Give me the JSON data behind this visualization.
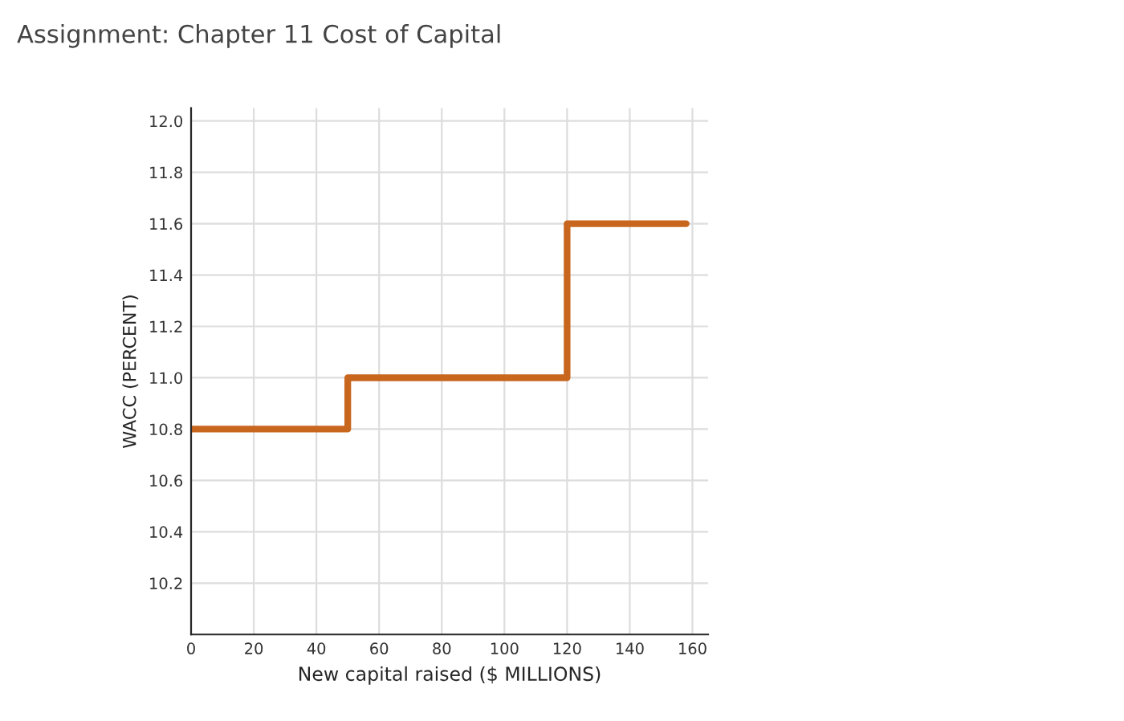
{
  "chart_data": {
    "type": "step",
    "title": "Assignment: Chapter 11 Cost of Capital",
    "xlabel": "New capital raised ($ MILLIONS)",
    "ylabel": "WACC (PERCENT)",
    "x": [
      0,
      50,
      120,
      158
    ],
    "series": [
      {
        "color": "#c8661e",
        "values": [
          10.8,
          11.0,
          11.6,
          11.6
        ]
      }
    ],
    "xlim": [
      0,
      165
    ],
    "ylim": [
      10.0,
      12.05
    ],
    "xticks": [
      0,
      20,
      40,
      60,
      80,
      100,
      120,
      140,
      160
    ],
    "yticks": [
      10.2,
      10.4,
      10.6,
      10.8,
      {
        "value": 11,
        "label": "11.0"
      },
      11.2,
      11.4,
      11.6,
      11.8,
      {
        "value": 12,
        "label": "12.0"
      }
    ],
    "grid": true,
    "legend": false,
    "marker": "none",
    "line_style": "solid"
  }
}
